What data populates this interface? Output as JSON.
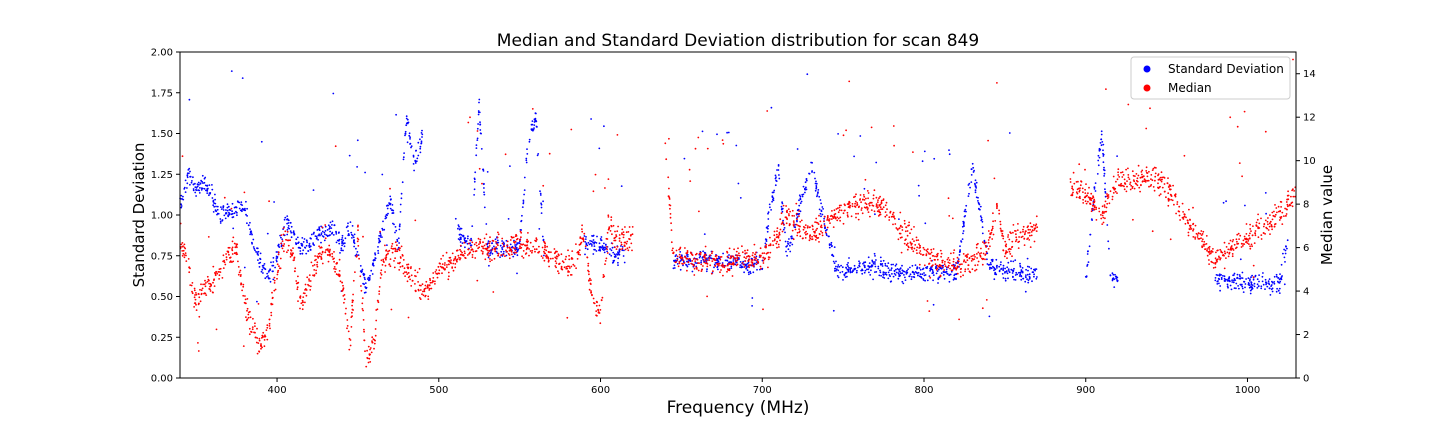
{
  "chart_data": {
    "type": "scatter",
    "title": "Median and Standard Deviation distribution for scan 849",
    "xlabel": "Frequency (MHz)",
    "ylabel_left": "Standard Deviation",
    "ylabel_right": "Median value",
    "xlim": [
      340,
      1030
    ],
    "ylim_left": [
      0,
      2.0
    ],
    "ylim_right": [
      0,
      15
    ],
    "x_ticks": [
      400,
      500,
      600,
      700,
      800,
      900,
      1000
    ],
    "y_left_ticks": [
      "0.00",
      "0.25",
      "0.50",
      "0.75",
      "1.00",
      "1.25",
      "1.50",
      "1.75",
      "2.00"
    ],
    "y_right_ticks": [
      0,
      2,
      4,
      6,
      8,
      10,
      12,
      14
    ],
    "grid": false,
    "legend_position": "top-right",
    "series": [
      {
        "name": "Standard Deviation",
        "axis": "left",
        "color": "#0000ff",
        "trend": [
          [
            340,
            1.05
          ],
          [
            345,
            1.25
          ],
          [
            350,
            1.15
          ],
          [
            355,
            1.2
          ],
          [
            360,
            1.1
          ],
          [
            365,
            1.0
          ],
          [
            380,
            1.05
          ],
          [
            385,
            0.85
          ],
          [
            390,
            0.7
          ],
          [
            395,
            0.62
          ],
          [
            400,
            0.75
          ],
          [
            405,
            0.95
          ],
          [
            410,
            0.9
          ],
          [
            415,
            0.78
          ],
          [
            420,
            0.82
          ],
          [
            425,
            0.88
          ],
          [
            430,
            0.9
          ],
          [
            435,
            0.92
          ],
          [
            440,
            0.8
          ],
          [
            445,
            0.92
          ],
          [
            450,
            0.75
          ],
          [
            455,
            0.55
          ],
          [
            460,
            0.7
          ],
          [
            465,
            0.9
          ],
          [
            470,
            1.1
          ],
          [
            475,
            0.8
          ],
          [
            480,
            1.6
          ],
          [
            485,
            1.3
          ],
          [
            490,
            1.5
          ],
          [
            510,
            0.95
          ],
          [
            515,
            0.85
          ],
          [
            520,
            0.82
          ],
          [
            525,
            1.7
          ],
          [
            530,
            0.8
          ],
          [
            540,
            0.8
          ],
          [
            550,
            0.8
          ],
          [
            555,
            1.45
          ],
          [
            560,
            1.6
          ],
          [
            565,
            0.8
          ],
          [
            590,
            0.82
          ],
          [
            600,
            0.82
          ],
          [
            610,
            0.75
          ],
          [
            615,
            0.75
          ],
          [
            645,
            0.72
          ],
          [
            660,
            0.73
          ],
          [
            670,
            0.72
          ],
          [
            680,
            0.72
          ],
          [
            690,
            0.7
          ],
          [
            700,
            0.7
          ],
          [
            705,
            1.05
          ],
          [
            710,
            1.3
          ],
          [
            715,
            0.75
          ],
          [
            730,
            1.3
          ],
          [
            745,
            0.68
          ],
          [
            755,
            0.66
          ],
          [
            770,
            0.7
          ],
          [
            780,
            0.65
          ],
          [
            790,
            0.64
          ],
          [
            800,
            0.65
          ],
          [
            810,
            0.66
          ],
          [
            820,
            0.64
          ],
          [
            830,
            1.3
          ],
          [
            840,
            0.7
          ],
          [
            850,
            0.65
          ],
          [
            860,
            0.64
          ],
          [
            870,
            0.63
          ],
          [
            900,
            0.6
          ],
          [
            905,
            1.1
          ],
          [
            910,
            1.5
          ],
          [
            915,
            0.65
          ],
          [
            920,
            0.6
          ],
          [
            940,
            0.59
          ],
          [
            960,
            0.6
          ],
          [
            980,
            0.61
          ],
          [
            990,
            0.6
          ],
          [
            1000,
            0.58
          ],
          [
            1010,
            0.58
          ],
          [
            1020,
            0.58
          ],
          [
            1025,
            0.85
          ]
        ]
      },
      {
        "name": "Median",
        "axis": "right",
        "color": "#ff0000",
        "trend": [
          [
            340,
            6.5
          ],
          [
            345,
            5.0
          ],
          [
            350,
            3.5
          ],
          [
            355,
            4.0
          ],
          [
            360,
            4.5
          ],
          [
            375,
            6.0
          ],
          [
            380,
            3.5
          ],
          [
            385,
            2.0
          ],
          [
            390,
            1.5
          ],
          [
            395,
            2.5
          ],
          [
            400,
            5.0
          ],
          [
            405,
            6.5
          ],
          [
            410,
            5.5
          ],
          [
            415,
            3.5
          ],
          [
            420,
            4.5
          ],
          [
            425,
            5.5
          ],
          [
            430,
            6.0
          ],
          [
            435,
            5.5
          ],
          [
            440,
            4.5
          ],
          [
            445,
            1.5
          ],
          [
            450,
            6.5
          ],
          [
            455,
            1.0
          ],
          [
            460,
            1.5
          ],
          [
            465,
            5.5
          ],
          [
            470,
            5.5
          ],
          [
            475,
            5.8
          ],
          [
            480,
            5.0
          ],
          [
            485,
            4.5
          ],
          [
            490,
            3.8
          ],
          [
            500,
            5.0
          ],
          [
            510,
            5.5
          ],
          [
            520,
            6.0
          ],
          [
            530,
            6.0
          ],
          [
            540,
            6.0
          ],
          [
            550,
            6.2
          ],
          [
            560,
            6.0
          ],
          [
            570,
            5.5
          ],
          [
            580,
            5.0
          ],
          [
            590,
            6.5
          ],
          [
            595,
            3.5
          ],
          [
            600,
            3.0
          ],
          [
            605,
            7.0
          ],
          [
            610,
            6.5
          ],
          [
            620,
            6.5
          ],
          [
            640,
            11.0
          ],
          [
            645,
            5.5
          ],
          [
            660,
            5.5
          ],
          [
            670,
            5.3
          ],
          [
            680,
            5.3
          ],
          [
            690,
            5.6
          ],
          [
            700,
            5.5
          ],
          [
            710,
            6.5
          ],
          [
            715,
            7.5
          ],
          [
            730,
            6.5
          ],
          [
            745,
            7.5
          ],
          [
            755,
            8.0
          ],
          [
            770,
            8.0
          ],
          [
            780,
            7.5
          ],
          [
            790,
            6.5
          ],
          [
            800,
            5.6
          ],
          [
            810,
            5.3
          ],
          [
            820,
            5.2
          ],
          [
            830,
            5.3
          ],
          [
            840,
            6.0
          ],
          [
            845,
            8.0
          ],
          [
            850,
            6.0
          ],
          [
            860,
            6.5
          ],
          [
            870,
            7.0
          ],
          [
            890,
            9.0
          ],
          [
            900,
            8.5
          ],
          [
            910,
            7.5
          ],
          [
            920,
            9.0
          ],
          [
            930,
            9.2
          ],
          [
            940,
            9.2
          ],
          [
            950,
            8.8
          ],
          [
            960,
            7.5
          ],
          [
            970,
            6.5
          ],
          [
            980,
            5.5
          ],
          [
            990,
            6.0
          ],
          [
            1000,
            6.5
          ],
          [
            1010,
            7.0
          ],
          [
            1020,
            7.5
          ],
          [
            1030,
            8.5
          ]
        ]
      }
    ]
  }
}
